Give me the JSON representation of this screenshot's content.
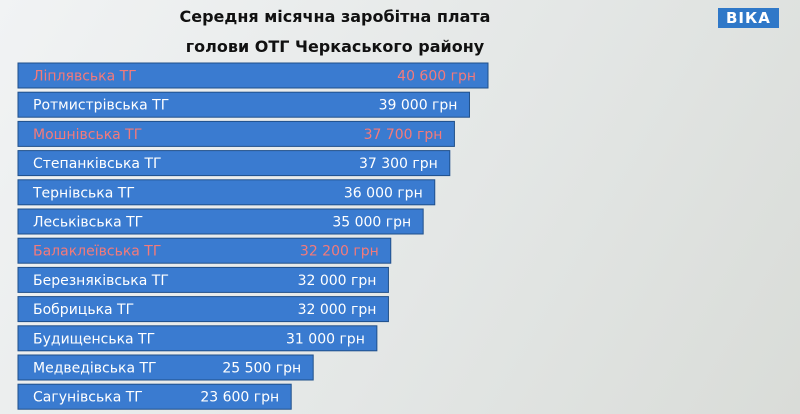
{
  "chart_data": {
    "type": "bar",
    "orientation": "horizontal",
    "title": "Середня місячна заробітна плата голови ОТГ Черкаського району",
    "logo": "ВІКА",
    "categories": [
      "Ліплявська ТГ",
      "Ротмистрівська ТГ",
      "Мошнівська ТГ",
      "Степанківська ТГ",
      "Тернівська ТГ",
      "Леськівська ТГ",
      "Балаклеївська ТГ",
      "Березняківська ТГ",
      "Бобрицька ТГ",
      "Будищенська ТГ",
      "Медведівська ТГ",
      "Сагунівська ТГ"
    ],
    "values": [
      40600,
      39000,
      37700,
      37300,
      36000,
      35000,
      32200,
      32000,
      32000,
      31000,
      25500,
      23600
    ],
    "value_labels": [
      "40 600 грн",
      "39 000 грн",
      "37 700 грн",
      "37 300 грн",
      "36 000 грн",
      "35 000 грн",
      "32 200 грн",
      "32 000 грн",
      "32 000 грн",
      "31 000 грн",
      "25 500 грн",
      "23 600 грн"
    ],
    "color": "#3a7bd0",
    "label_colors": [
      "#f47a7a",
      "#ffffff",
      "#f47a7a",
      "#ffffff",
      "#ffffff",
      "#ffffff",
      "#f47a7a",
      "#ffffff",
      "#ffffff",
      "#ffffff",
      "#ffffff",
      "#ffffff"
    ]
  }
}
